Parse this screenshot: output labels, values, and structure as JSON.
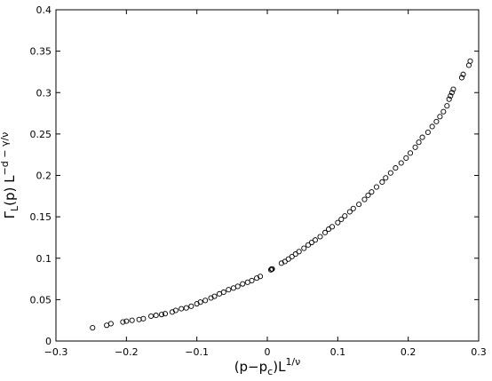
{
  "chart_data": {
    "type": "scatter",
    "title": "",
    "xlabel": {
      "base": "(p−p",
      "sub": "c",
      "mid": ")L",
      "sup": "1/ν"
    },
    "ylabel": {
      "base": "Γ",
      "sub": "L",
      "mid": "(p) L",
      "sup": "−d − γ/ν"
    },
    "xlim": [
      -0.3,
      0.3
    ],
    "ylim": [
      0,
      0.4
    ],
    "xticks": [
      -0.3,
      -0.2,
      -0.1,
      0,
      0.1,
      0.2,
      0.3
    ],
    "xtick_labels": [
      "−0.3",
      "−0.2",
      "−0.1",
      "0",
      "0.1",
      "0.2",
      "0.3"
    ],
    "yticks": [
      0,
      0.05,
      0.1,
      0.15,
      0.2,
      0.25,
      0.3,
      0.35,
      0.4
    ],
    "ytick_labels": [
      "0",
      "0.05",
      "0.1",
      "0.15",
      "0.2",
      "0.25",
      "0.3",
      "0.35",
      "0.4"
    ],
    "grid": false,
    "marker": "open-circle",
    "marker_color": "#000000",
    "series": [
      {
        "points": [
          [
            -0.248,
            0.016
          ],
          [
            -0.228,
            0.019
          ],
          [
            -0.222,
            0.021
          ],
          [
            -0.205,
            0.023
          ],
          [
            -0.2,
            0.024
          ],
          [
            -0.192,
            0.025
          ],
          [
            -0.182,
            0.026
          ],
          [
            -0.176,
            0.027
          ],
          [
            -0.165,
            0.03
          ],
          [
            -0.158,
            0.031
          ],
          [
            -0.15,
            0.032
          ],
          [
            -0.145,
            0.033
          ],
          [
            -0.135,
            0.035
          ],
          [
            -0.13,
            0.037
          ],
          [
            -0.122,
            0.039
          ],
          [
            -0.115,
            0.04
          ],
          [
            -0.108,
            0.042
          ],
          [
            -0.1,
            0.045
          ],
          [
            -0.095,
            0.047
          ],
          [
            -0.088,
            0.049
          ],
          [
            -0.08,
            0.052
          ],
          [
            -0.075,
            0.054
          ],
          [
            -0.068,
            0.057
          ],
          [
            -0.062,
            0.059
          ],
          [
            -0.055,
            0.062
          ],
          [
            -0.048,
            0.064
          ],
          [
            -0.042,
            0.066
          ],
          [
            -0.035,
            0.069
          ],
          [
            -0.028,
            0.071
          ],
          [
            -0.022,
            0.073
          ],
          [
            -0.015,
            0.076
          ],
          [
            -0.01,
            0.078
          ],
          [
            0.005,
            0.086
          ],
          [
            0.006,
            0.087
          ],
          [
            0.007,
            0.087
          ],
          [
            0.02,
            0.094
          ],
          [
            0.025,
            0.096
          ],
          [
            0.03,
            0.099
          ],
          [
            0.035,
            0.102
          ],
          [
            0.04,
            0.105
          ],
          [
            0.045,
            0.108
          ],
          [
            0.052,
            0.112
          ],
          [
            0.058,
            0.116
          ],
          [
            0.063,
            0.119
          ],
          [
            0.068,
            0.122
          ],
          [
            0.075,
            0.126
          ],
          [
            0.082,
            0.131
          ],
          [
            0.087,
            0.135
          ],
          [
            0.092,
            0.138
          ],
          [
            0.1,
            0.143
          ],
          [
            0.105,
            0.147
          ],
          [
            0.11,
            0.151
          ],
          [
            0.117,
            0.156
          ],
          [
            0.122,
            0.16
          ],
          [
            0.13,
            0.165
          ],
          [
            0.138,
            0.171
          ],
          [
            0.143,
            0.176
          ],
          [
            0.148,
            0.18
          ],
          [
            0.155,
            0.186
          ],
          [
            0.163,
            0.192
          ],
          [
            0.168,
            0.197
          ],
          [
            0.175,
            0.203
          ],
          [
            0.182,
            0.209
          ],
          [
            0.19,
            0.215
          ],
          [
            0.197,
            0.221
          ],
          [
            0.203,
            0.227
          ],
          [
            0.21,
            0.234
          ],
          [
            0.215,
            0.24
          ],
          [
            0.22,
            0.246
          ],
          [
            0.228,
            0.252
          ],
          [
            0.234,
            0.259
          ],
          [
            0.24,
            0.265
          ],
          [
            0.245,
            0.271
          ],
          [
            0.25,
            0.277
          ],
          [
            0.255,
            0.284
          ],
          [
            0.258,
            0.292
          ],
          [
            0.26,
            0.296
          ],
          [
            0.262,
            0.3
          ],
          [
            0.264,
            0.304
          ],
          [
            0.276,
            0.318
          ],
          [
            0.278,
            0.322
          ],
          [
            0.286,
            0.333
          ],
          [
            0.288,
            0.338
          ]
        ]
      }
    ]
  }
}
